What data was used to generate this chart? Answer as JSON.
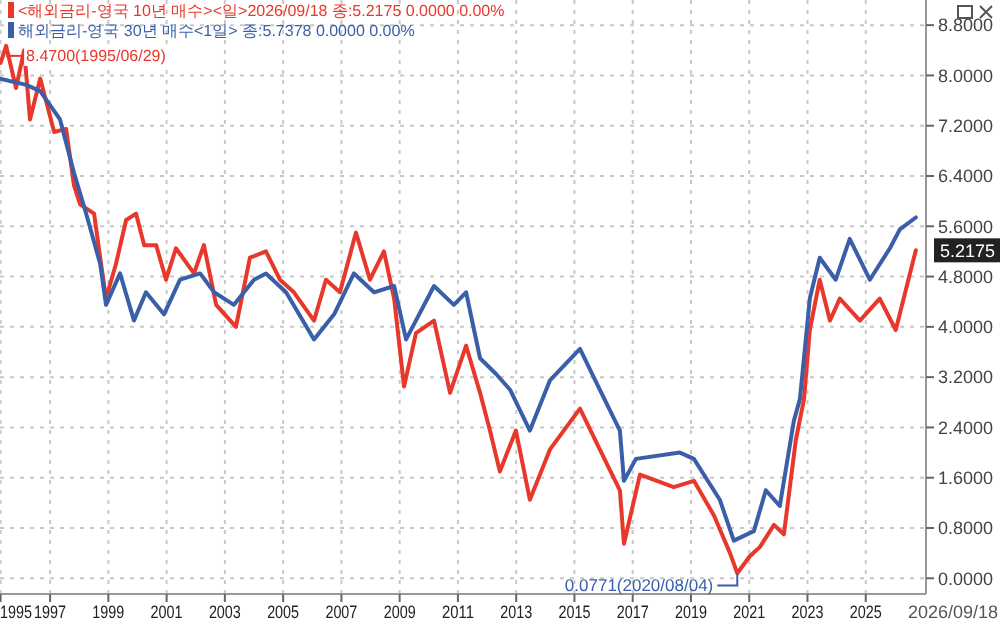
{
  "chart_data": {
    "type": "line",
    "series": [
      {
        "name": "<해외금리-영국 10년 매수><일>2026/09/18 종:5.2175 0.0000 0.00%",
        "color": "#e8382b",
        "x": [
          1995.3,
          1995.49,
          1995.83,
          1996.11,
          1996.31,
          1996.66,
          1997.14,
          1997.55,
          1997.82,
          1998.03,
          1998.51,
          1998.72,
          1998.92,
          1999.26,
          1999.61,
          1999.95,
          2000.23,
          2000.64,
          2000.98,
          2001.32,
          2001.94,
          2002.28,
          2002.7,
          2003.38,
          2003.86,
          2004.41,
          2004.89,
          2005.37,
          2006.06,
          2006.47,
          2006.95,
          2007.5,
          2007.98,
          2008.46,
          2008.81,
          2009.15,
          2009.56,
          2010.18,
          2010.73,
          2011.28,
          2011.76,
          2012.1,
          2012.44,
          2012.99,
          2013.47,
          2014.16,
          2015.19,
          2015.87,
          2016.56,
          2016.7,
          2017.25,
          2018.41,
          2019.1,
          2019.79,
          2020.34,
          2020.59,
          2021.02,
          2021.37,
          2021.85,
          2022.19,
          2022.6,
          2022.88,
          2023.08,
          2023.42,
          2023.77,
          2024.11,
          2024.8,
          2025.48,
          2026.03,
          2026.72
        ],
        "values": [
          8.2,
          8.47,
          7.8,
          8.4,
          7.3,
          7.95,
          7.1,
          7.15,
          6.25,
          5.95,
          5.8,
          5.1,
          4.45,
          5.0,
          5.7,
          5.8,
          5.3,
          5.3,
          4.75,
          5.25,
          4.85,
          5.3,
          4.35,
          4.0,
          5.1,
          5.2,
          4.75,
          4.55,
          4.1,
          4.75,
          4.55,
          5.5,
          4.75,
          5.2,
          4.45,
          3.05,
          3.9,
          4.1,
          2.95,
          3.7,
          2.95,
          2.35,
          1.7,
          2.35,
          1.25,
          2.05,
          2.7,
          2.05,
          1.4,
          0.55,
          1.65,
          1.45,
          1.55,
          1.0,
          0.4,
          0.08,
          0.35,
          0.5,
          0.85,
          0.7,
          2.2,
          2.85,
          3.95,
          4.75,
          4.1,
          4.45,
          4.1,
          4.45,
          3.95,
          5.22
        ]
      },
      {
        "name": "해외금리-영국 30년 매수<1일> 종:5.7378 0.0000 0.00%",
        "color": "#3a5fa8",
        "x": [
          1995.28,
          1996.18,
          1996.66,
          1997.34,
          1997.82,
          1998.24,
          1998.72,
          1998.92,
          1999.4,
          1999.88,
          2000.29,
          2000.91,
          2001.46,
          2002.15,
          2002.63,
          2003.31,
          2004.0,
          2004.41,
          2005.1,
          2006.06,
          2006.75,
          2007.43,
          2008.12,
          2008.81,
          2009.22,
          2010.18,
          2010.86,
          2011.28,
          2011.76,
          2012.31,
          2012.79,
          2013.47,
          2014.16,
          2015.19,
          2015.87,
          2016.56,
          2016.7,
          2017.11,
          2018.62,
          2019.1,
          2019.99,
          2020.47,
          2021.16,
          2021.57,
          2022.05,
          2022.53,
          2022.74,
          2023.08,
          2023.42,
          2023.97,
          2024.45,
          2025.14,
          2025.83,
          2026.17,
          2026.72
        ],
        "values": [
          7.95,
          7.85,
          7.75,
          7.3,
          6.45,
          5.8,
          5.0,
          4.35,
          4.85,
          4.1,
          4.55,
          4.2,
          4.75,
          4.85,
          4.55,
          4.35,
          4.75,
          4.85,
          4.55,
          3.8,
          4.2,
          4.85,
          4.55,
          4.65,
          3.8,
          4.65,
          4.35,
          4.55,
          3.5,
          3.25,
          3.0,
          2.35,
          3.15,
          3.65,
          3.0,
          2.35,
          1.55,
          1.9,
          2.0,
          1.9,
          1.25,
          0.6,
          0.75,
          1.4,
          1.15,
          2.5,
          2.85,
          4.45,
          5.1,
          4.75,
          5.4,
          4.75,
          5.25,
          5.55,
          5.74
        ]
      }
    ],
    "xlim": [
      1995.28,
      2027.0
    ],
    "xticks": [
      {
        "value": 1995.3,
        "label": "1995"
      },
      1997,
      1999,
      2001,
      2003,
      2005,
      2007,
      2009,
      2011,
      2013,
      2015,
      2017,
      2019,
      2021,
      2023,
      2025
    ],
    "ylim": [
      -0.25,
      9.2
    ],
    "yticks": [
      {
        "value": 0,
        "label": "0.0000"
      },
      {
        "value": 0.8,
        "label": "0.8000"
      },
      {
        "value": 1.6,
        "label": "1.6000"
      },
      {
        "value": 2.4,
        "label": "2.4000"
      },
      {
        "value": 3.2,
        "label": "3.2000"
      },
      {
        "value": 4,
        "label": "4.0000"
      },
      {
        "value": 4.8,
        "label": "4.8000"
      },
      {
        "value": 5.6,
        "label": "5.6000"
      },
      {
        "value": 6.4,
        "label": "6.4000"
      },
      {
        "value": 7.2,
        "label": "7.2000"
      },
      {
        "value": 8,
        "label": "8.0000"
      },
      {
        "value": 8.8,
        "label": "8.8000"
      }
    ],
    "grid": true,
    "legend": "top left",
    "line_style": "solid",
    "marker": "none",
    "annotations": [
      {
        "text": "8.4700(1995/06/29)",
        "x": 1995.49,
        "y": 8.47
      },
      {
        "text": "0.0771(2020/08/04)",
        "x": 2020.59,
        "y": 0.0771
      },
      {
        "text": "5.2175",
        "x": 2026.72,
        "y": 5.2175
      },
      "2026/09/18"
    ]
  }
}
